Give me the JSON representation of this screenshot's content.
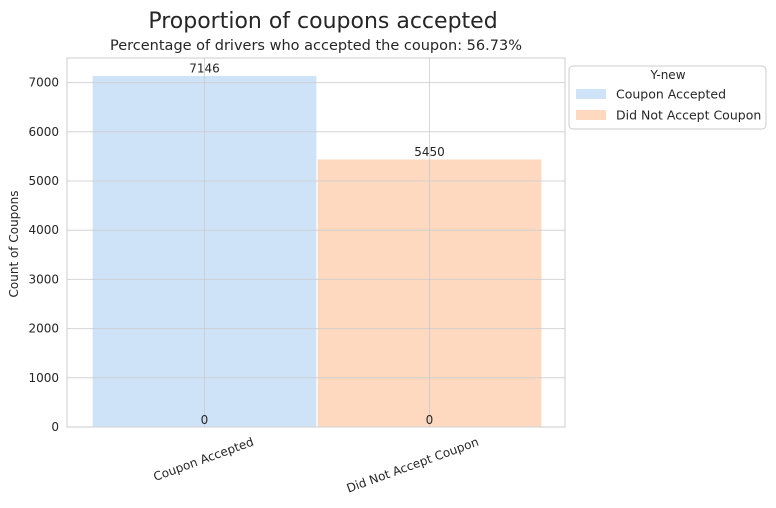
{
  "chart_data": {
    "type": "bar",
    "title": "Proportion of coupons accepted",
    "subtitle": "Percentage of drivers who accepted the coupon: 56.73%",
    "categories": [
      "Coupon Accepted",
      "Did Not Accept Coupon"
    ],
    "series": [
      {
        "name": "Coupon Accepted",
        "values": [
          7146,
          0
        ],
        "color": "#cfe3f8"
      },
      {
        "name": "Did Not Accept Coupon",
        "values": [
          0,
          5450
        ],
        "color": "#ffd9bf"
      }
    ],
    "data_labels": [
      [
        "7146",
        "0"
      ],
      [
        "0",
        "5450"
      ]
    ],
    "xlabel": "",
    "ylabel": "Count of Coupons",
    "ylim": [
      0,
      7500
    ],
    "yticks": [
      0,
      1000,
      2000,
      3000,
      4000,
      5000,
      6000,
      7000
    ],
    "grid": true,
    "legend": {
      "title": "Y-new",
      "position": "outside-top-right",
      "entries": [
        "Coupon Accepted",
        "Did Not Accept Coupon"
      ]
    }
  }
}
